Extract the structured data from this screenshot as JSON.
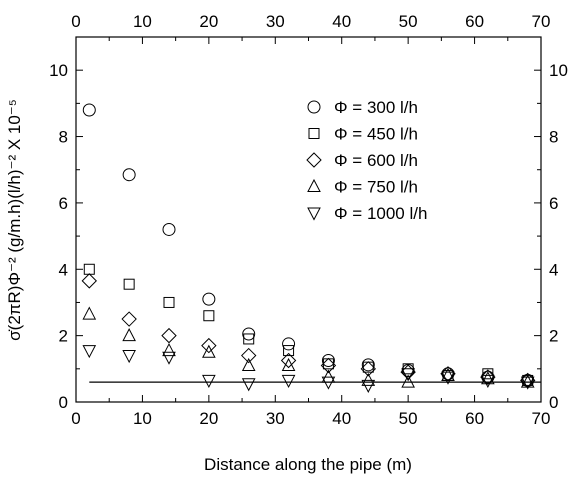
{
  "chart_data": {
    "type": "scatter",
    "title": "",
    "xlabel": "Distance along the pipe (m)",
    "ylabel": "σ̇(2πR)Φ⁻² (g/m.h)(l/h)⁻² X 10⁻⁵",
    "xlim": [
      0,
      70
    ],
    "ylim": [
      0,
      11
    ],
    "x_ticks": [
      0,
      10,
      20,
      30,
      40,
      50,
      60,
      70
    ],
    "y_ticks": [
      0,
      2,
      4,
      6,
      8,
      10
    ],
    "top_ticks": [
      0,
      10,
      20,
      30,
      40,
      50,
      60,
      70
    ],
    "right_ticks": [
      0,
      2,
      4,
      6,
      8,
      10
    ],
    "grid": false,
    "legend_position": "upper-right",
    "series": [
      {
        "name": "Φ = 300 l/h",
        "marker": "circle",
        "x": [
          2,
          8,
          14,
          20,
          26,
          32,
          38,
          44,
          50,
          56,
          62,
          68
        ],
        "y": [
          8.8,
          6.85,
          5.2,
          3.1,
          2.05,
          1.75,
          1.25,
          1.12,
          0.95,
          0.85,
          0.75,
          0.65
        ]
      },
      {
        "name": "Φ = 450 l/h",
        "marker": "square",
        "x": [
          2,
          8,
          14,
          20,
          26,
          32,
          38,
          44,
          50,
          56,
          62,
          68
        ],
        "y": [
          4.0,
          3.55,
          3.0,
          2.6,
          1.9,
          1.55,
          1.15,
          1.05,
          1.0,
          0.8,
          0.85,
          0.65
        ]
      },
      {
        "name": "Φ = 600 l/h",
        "marker": "diamond",
        "x": [
          2,
          8,
          14,
          20,
          26,
          32,
          38,
          44,
          50,
          56,
          62,
          68
        ],
        "y": [
          3.65,
          2.5,
          2.0,
          1.7,
          1.4,
          1.25,
          1.1,
          1.0,
          0.9,
          0.85,
          0.75,
          0.65
        ]
      },
      {
        "name": "Φ = 750 l/h",
        "marker": "triangle-up",
        "x": [
          2,
          8,
          14,
          20,
          26,
          32,
          38,
          44,
          50,
          56,
          62,
          68
        ],
        "y": [
          2.65,
          2.0,
          1.55,
          1.5,
          1.1,
          1.1,
          0.75,
          0.65,
          0.6,
          0.8,
          0.7,
          0.6
        ]
      },
      {
        "name": "Φ = 1000 l/h",
        "marker": "triangle-down",
        "x": [
          2,
          8,
          14,
          20,
          26,
          32,
          38,
          44,
          50,
          56,
          62,
          68
        ],
        "y": [
          1.55,
          1.4,
          1.35,
          0.65,
          0.55,
          0.65,
          0.6,
          0.5,
          0.85,
          0.75,
          0.65,
          0.6
        ]
      }
    ],
    "reference_line": {
      "y": 0.6,
      "x_start": 2,
      "x_end": 70
    }
  }
}
